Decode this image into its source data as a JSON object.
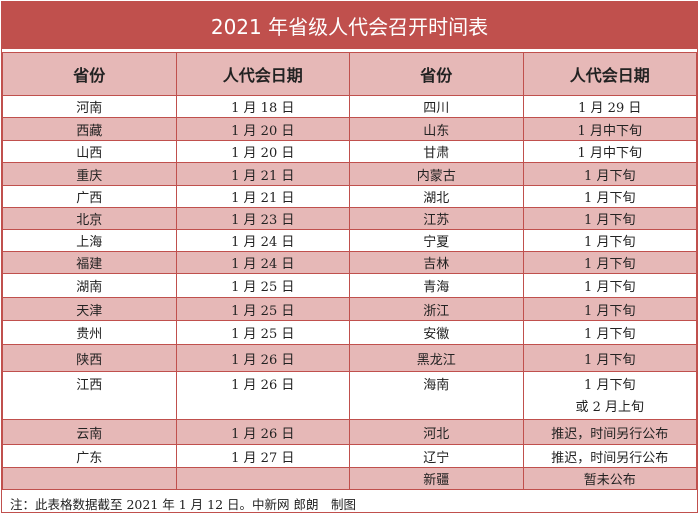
{
  "title": "2021 年省级人代会召开时间表",
  "headers": [
    "省份",
    "人代会日期",
    "省份",
    "人代会日期"
  ],
  "rows": [
    [
      "河南",
      "1 月 18 日",
      "四川",
      "1 月 29 日"
    ],
    [
      "西藏",
      "1 月 20 日",
      "山东",
      "1 月中下旬"
    ],
    [
      "山西",
      "1 月 20 日",
      "甘肃",
      "1 月中下旬"
    ],
    [
      "重庆",
      "1 月 21 日",
      "内蒙古",
      "1 月下旬"
    ],
    [
      "广西",
      "1 月 21 日",
      "湖北",
      "1 月下旬"
    ],
    [
      "北京",
      "1 月 23 日",
      "江苏",
      "1 月下旬"
    ],
    [
      "上海",
      "1 月 24 日",
      "宁夏",
      "1 月下旬"
    ],
    [
      "福建",
      "1 月 24 日",
      "吉林",
      "1 月下旬"
    ],
    [
      "湖南",
      "1 月 25 日",
      "青海",
      "1 月下旬"
    ],
    [
      "天津",
      "1 月 25 日",
      "浙江",
      "1 月下旬"
    ],
    [
      "贵州",
      "1 月 25 日",
      "安徽",
      "1 月下旬"
    ],
    [
      "陕西",
      "1 月 26 日",
      "黑龙江",
      "1 月下旬"
    ],
    [
      "江西",
      "1 月 26 日",
      "海南",
      "1 月下旬\n或 2 月上旬"
    ],
    [
      "云南",
      "1 月 26 日",
      "河北",
      "推迟，时间另行公布"
    ],
    [
      "广东",
      "1 月 27 日",
      "辽宁",
      "推迟，时间另行公布"
    ],
    [
      "",
      "",
      "新疆",
      "暂未公布"
    ]
  ],
  "note": "注：此表格数据截至 2021 年 1 月 12 日。中新网 郎朗　制图",
  "colors": {
    "accent": "#c0504d",
    "stripe": "#e6b8b7"
  }
}
